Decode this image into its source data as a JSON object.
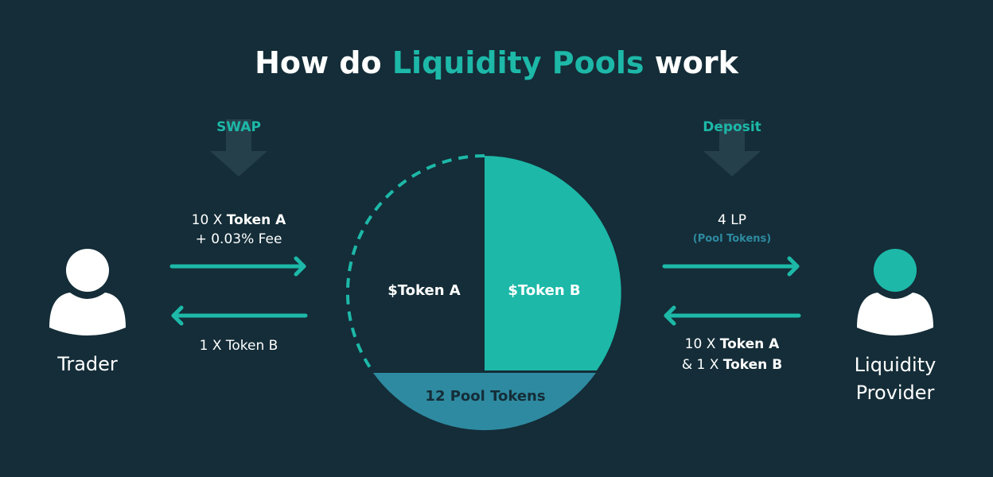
{
  "title": {
    "prefix": "How do ",
    "highlight": "Liquidity Pools",
    "suffix": " work"
  },
  "colors": {
    "background": "#142d38",
    "accent": "#1db8a8",
    "pool_tokens": "#2e8aa0",
    "text": "#ffffff",
    "shadow_arrow": "#2a4550"
  },
  "swap": {
    "label": "SWAP",
    "in_line1_normal": "10 X ",
    "in_line1_bold": "Token A",
    "in_line2": "+ 0.03% Fee",
    "out_label": "1 X Token B"
  },
  "deposit": {
    "label": "Deposit",
    "out_line1": "4 LP",
    "out_line2": "(Pool Tokens)",
    "in_line1_normal": "10 X ",
    "in_line1_bold": "Token A",
    "in_line2_normal": "& 1 X ",
    "in_line2_bold": "Token B"
  },
  "pool": {
    "token_a": "$Token A",
    "token_b": "$Token B",
    "pool_tokens": "12 Pool Tokens"
  },
  "trader": {
    "label": "Trader",
    "icon": "user-icon"
  },
  "provider": {
    "label_line1": "Liquidity",
    "label_line2": "Provider",
    "icon": "user-icon"
  }
}
